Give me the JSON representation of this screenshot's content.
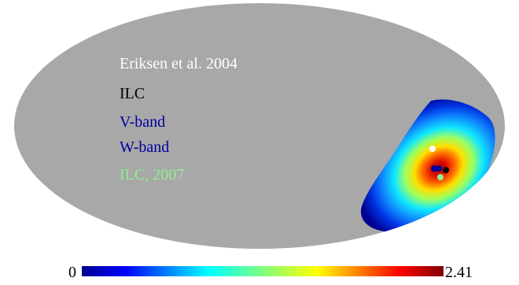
{
  "chart_data": {
    "type": "heatmap",
    "projection": "mollweide",
    "background_color": "#a8a8a8",
    "legend": [
      {
        "label": "Eriksen et al. 2004",
        "color": "#ffffff"
      },
      {
        "label": "ILC",
        "color": "#000000"
      },
      {
        "label": "V-band",
        "color": "#00009c"
      },
      {
        "label": "W-band",
        "color": "#00009c"
      },
      {
        "label": "ILC, 2007",
        "color": "#90ee90"
      }
    ],
    "colorbar": {
      "min": 0,
      "max": 2.41,
      "min_label": "0",
      "max_label": "2.41",
      "colormap": "jet"
    }
  }
}
